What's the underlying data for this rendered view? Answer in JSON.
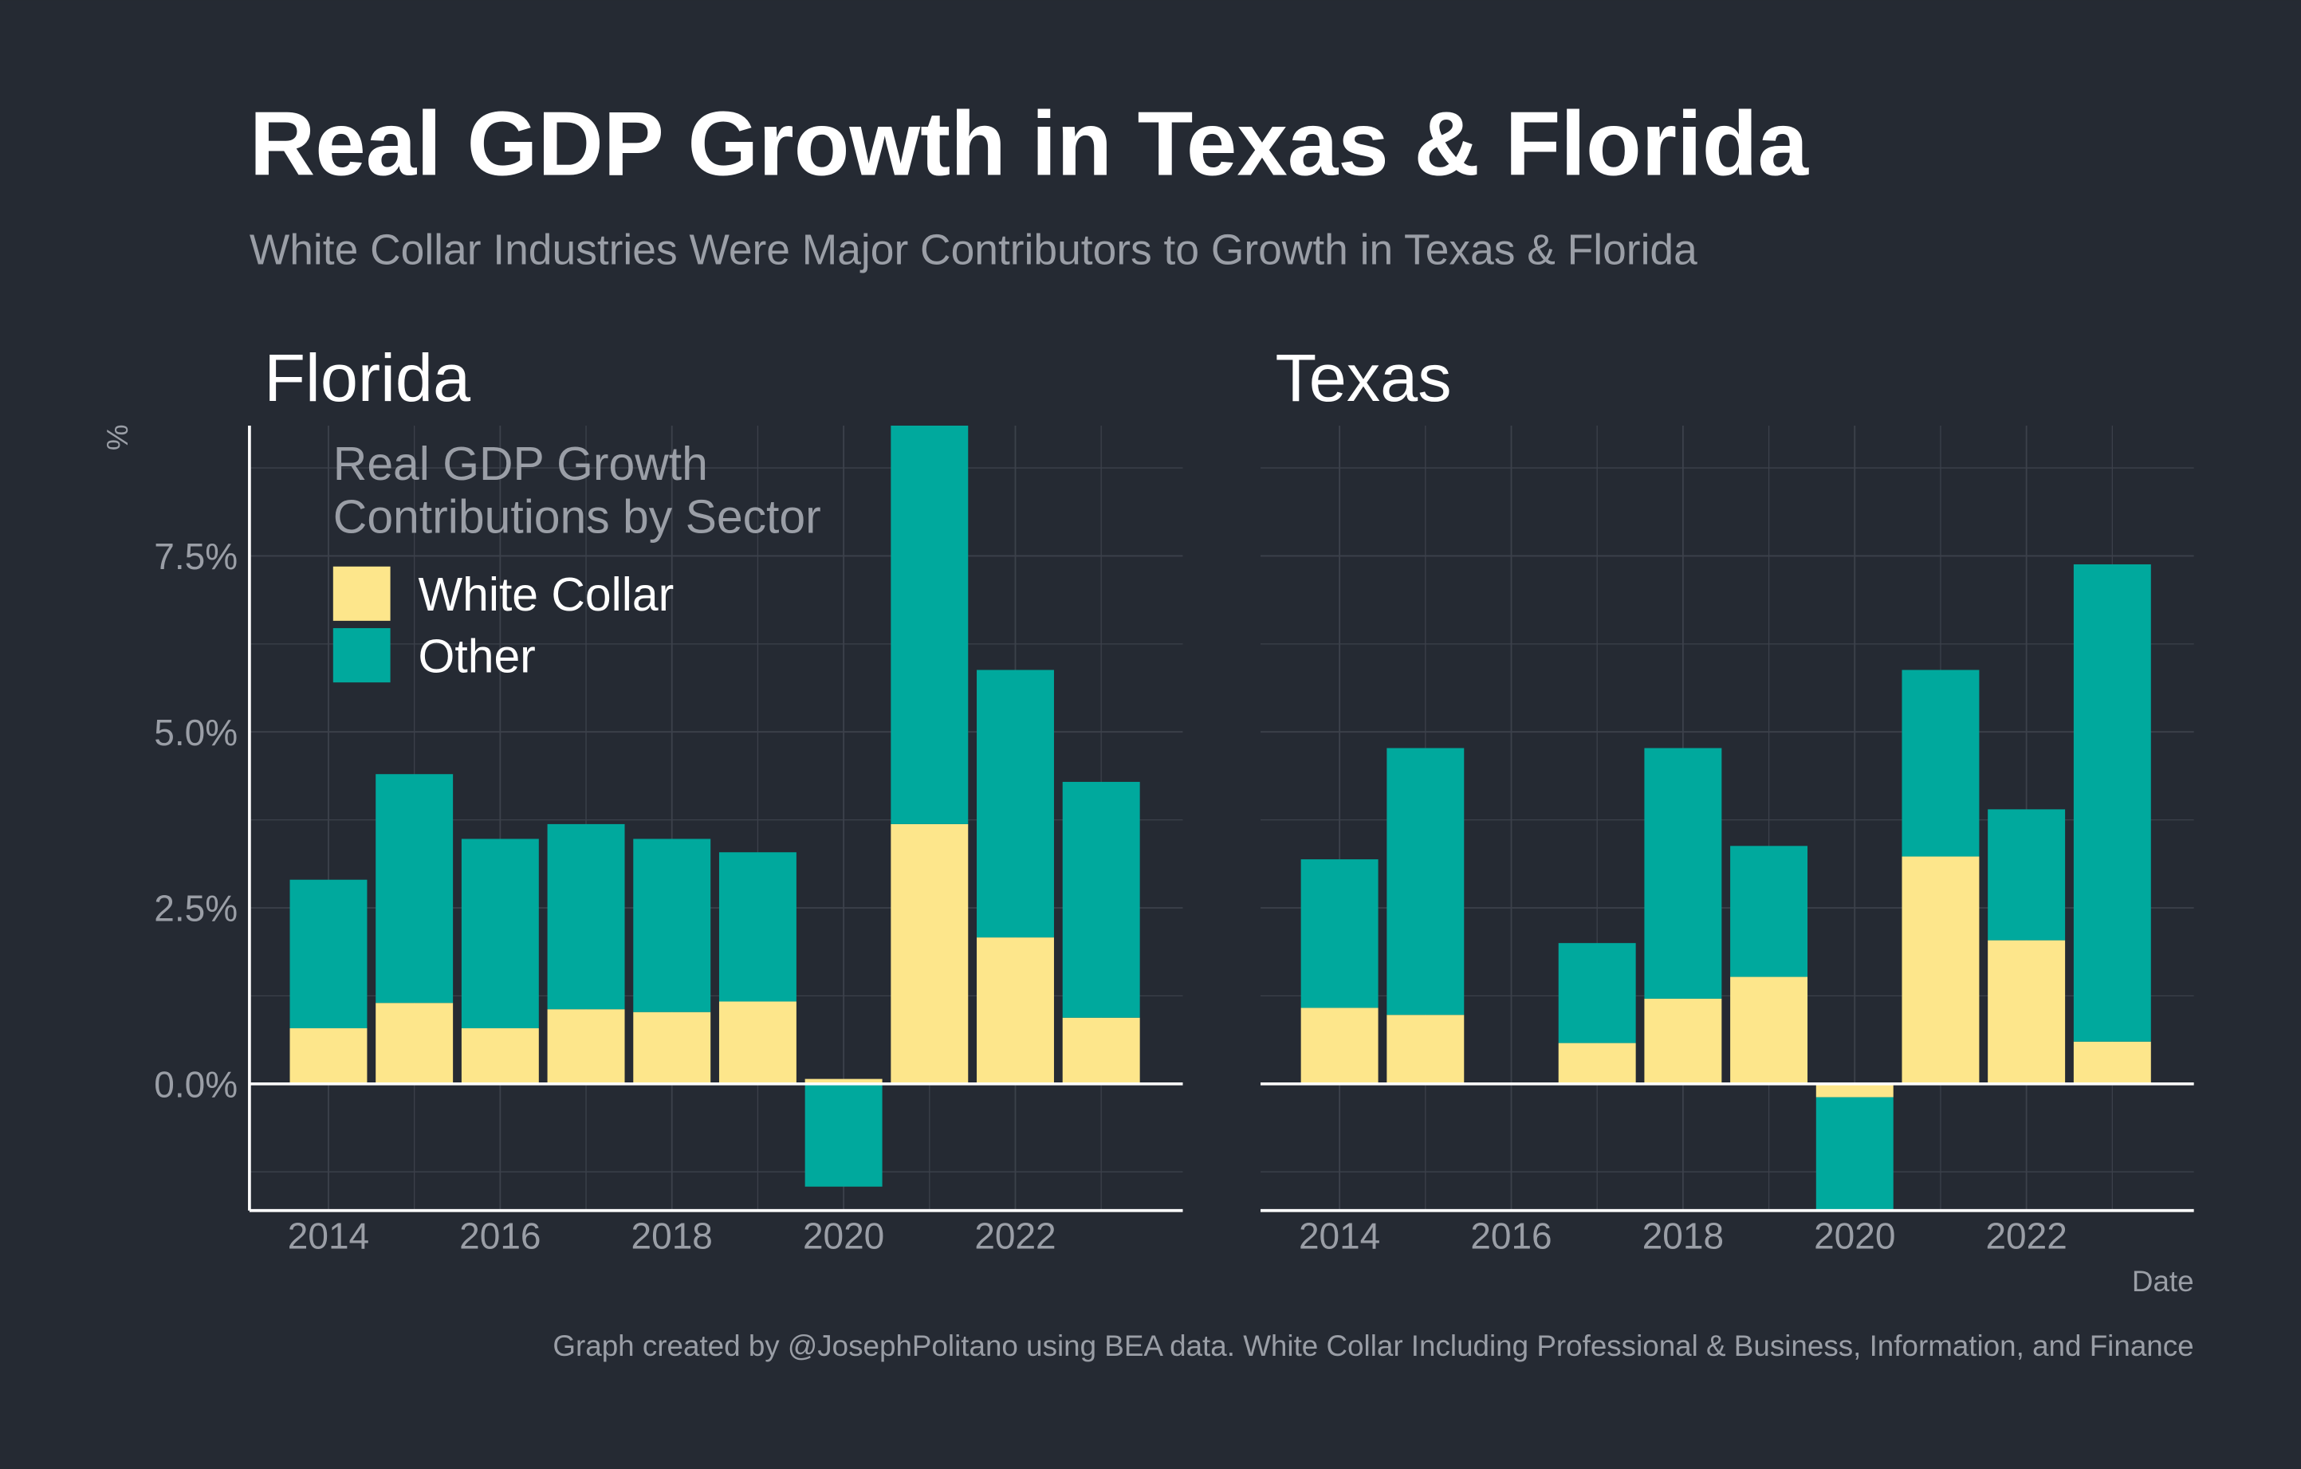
{
  "header": {
    "title": "Real GDP Growth in Texas & Florida",
    "subtitle": "White Collar Industries Were Major Contributors to Growth in Texas & Florida"
  },
  "caption": "Graph created by @JosephPolitano using BEA data. White Collar Including Professional & Business, Information, and Finance",
  "chart_data": [
    {
      "type": "bar",
      "stacked": true,
      "title": "Florida",
      "ylabel": "%",
      "legend_title": [
        "Real GDP Growth",
        "Contributions by Sector"
      ],
      "legend": "top-left",
      "x": [
        2014,
        2015,
        2016,
        2017,
        2018,
        2019,
        2020,
        2021,
        2022,
        2023
      ],
      "series": [
        {
          "name": "White Collar",
          "color": "#fde68b",
          "values": [
            0.79,
            1.15,
            0.79,
            1.06,
            1.02,
            1.17,
            0.07,
            3.69,
            2.08,
            0.94
          ]
        },
        {
          "name": "Other",
          "color": "#00a99d",
          "values": [
            2.11,
            3.25,
            2.69,
            2.63,
            2.46,
            2.12,
            -1.46,
            5.7,
            3.8,
            3.35
          ]
        }
      ],
      "xlim": [
        2013.08,
        2023.95
      ],
      "xticks": [
        2014,
        2016,
        2018,
        2020,
        2022
      ],
      "ylim": [
        -1.8,
        9.35
      ],
      "yticks": [
        {
          "value": 0,
          "label": "0.0%"
        },
        {
          "value": 2.5,
          "label": "2.5%"
        },
        {
          "value": 5,
          "label": "5.0%"
        },
        {
          "value": 7.5,
          "label": "7.5%"
        }
      ],
      "grid": true
    },
    {
      "type": "bar",
      "stacked": true,
      "title": "Texas",
      "xlabel": "Date",
      "x": [
        2014,
        2015,
        2016,
        2017,
        2018,
        2019,
        2020,
        2021,
        2022,
        2023
      ],
      "series": [
        {
          "name": "White Collar",
          "color": "#fde68b",
          "values": [
            1.08,
            0.98,
            0,
            0.58,
            1.21,
            1.52,
            -0.19,
            3.23,
            2.04,
            0.6
          ]
        },
        {
          "name": "Other",
          "color": "#00a99d",
          "values": [
            2.11,
            3.79,
            0.02,
            1.42,
            3.56,
            1.86,
            -2.0,
            2.65,
            1.86,
            6.78
          ]
        }
      ],
      "xlim": [
        2013.08,
        2023.95
      ],
      "xticks": [
        2014,
        2016,
        2018,
        2020,
        2022
      ],
      "ylim": [
        -1.8,
        9.35
      ],
      "yticks": [
        0,
        2.5,
        5,
        7.5
      ],
      "grid": true
    }
  ]
}
